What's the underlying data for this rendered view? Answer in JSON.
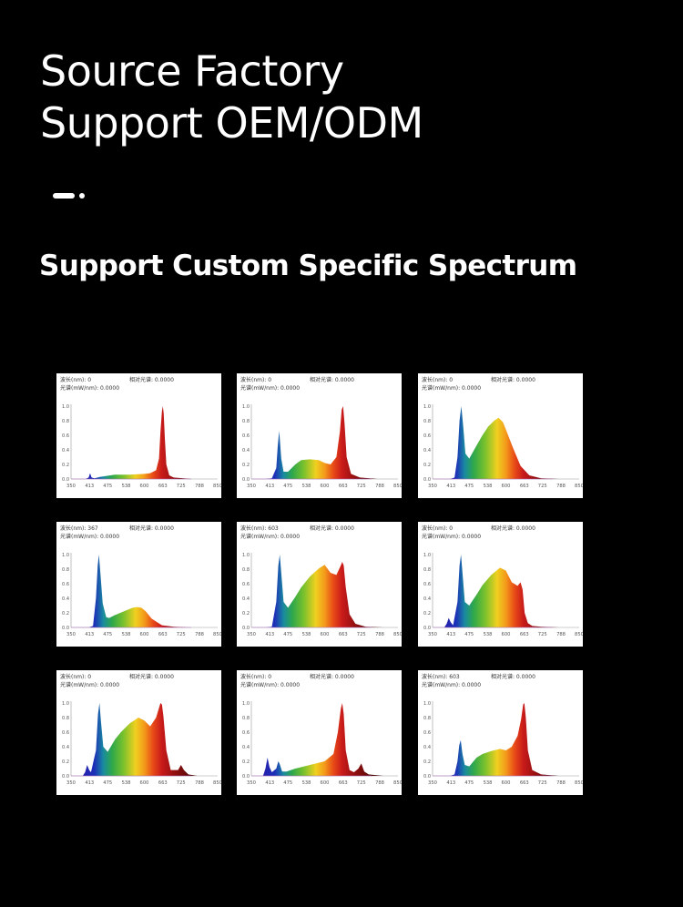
{
  "header": {
    "title_line1": "Source Factory",
    "title_line2": "Support OEM/ODM",
    "subtitle": "Support Custom Specific Spectrum"
  },
  "colors": {
    "background": "#000000",
    "text": "#ffffff",
    "card": "#ffffff"
  },
  "chart_common": {
    "x_ticks": [
      "350",
      "413",
      "475",
      "538",
      "600",
      "663",
      "725",
      "788",
      "850"
    ],
    "y_ticks": [
      "0.0",
      "0.2",
      "0.4",
      "0.6",
      "0.8",
      "1.0"
    ],
    "xlim": [
      350,
      850
    ],
    "ylim": [
      0,
      1.0
    ]
  },
  "chart_data": [
    {
      "type": "area",
      "info": {
        "wavelength": "波长(nm): 0",
        "relative": "相对光谱: 0.0000",
        "flux": "光谱(mW/nm): 0.0000"
      },
      "x": [
        350,
        400,
        410,
        415,
        420,
        430,
        450,
        500,
        550,
        600,
        620,
        640,
        650,
        655,
        660,
        663,
        666,
        670,
        675,
        685,
        700,
        760,
        850
      ],
      "y": [
        0,
        0,
        0.02,
        0.08,
        0.02,
        0.01,
        0.03,
        0.06,
        0.06,
        0.07,
        0.08,
        0.12,
        0.28,
        0.65,
        0.93,
        1.0,
        0.9,
        0.55,
        0.2,
        0.05,
        0.02,
        0,
        0
      ]
    },
    {
      "type": "area",
      "info": {
        "wavelength": "波长(nm): 0",
        "relative": "相对光谱: 0.0000",
        "flux": "光谱(mW/nm): 0.0000"
      },
      "x": [
        350,
        400,
        420,
        435,
        440,
        445,
        452,
        460,
        475,
        500,
        520,
        550,
        580,
        600,
        620,
        640,
        652,
        658,
        663,
        668,
        675,
        690,
        720,
        780,
        850
      ],
      "y": [
        0,
        0,
        0.01,
        0.15,
        0.45,
        0.66,
        0.28,
        0.1,
        0.1,
        0.2,
        0.26,
        0.27,
        0.26,
        0.22,
        0.2,
        0.3,
        0.65,
        0.95,
        1.0,
        0.75,
        0.3,
        0.07,
        0.02,
        0,
        0
      ]
    },
    {
      "type": "area",
      "info": {
        "wavelength": "波长(nm): 0",
        "relative": "相对光谱: 0.0000",
        "flux": "光谱(mW/nm): 0.0000"
      },
      "x": [
        350,
        410,
        425,
        435,
        442,
        448,
        455,
        462,
        475,
        500,
        520,
        540,
        560,
        575,
        590,
        600,
        625,
        650,
        680,
        720,
        780,
        850
      ],
      "y": [
        0,
        0,
        0.02,
        0.3,
        0.8,
        1.0,
        0.7,
        0.35,
        0.28,
        0.46,
        0.6,
        0.72,
        0.8,
        0.84,
        0.78,
        0.68,
        0.42,
        0.18,
        0.05,
        0.01,
        0,
        0
      ]
    },
    {
      "type": "area",
      "info": {
        "wavelength": "波长(nm): 367",
        "relative": "相对光谱: 0.0000",
        "flux": "光谱(mW/nm): 0.0000"
      },
      "x": [
        350,
        410,
        425,
        435,
        441,
        445,
        450,
        458,
        470,
        480,
        500,
        530,
        560,
        575,
        590,
        605,
        625,
        660,
        700,
        750,
        850
      ],
      "y": [
        0,
        0,
        0.02,
        0.4,
        0.85,
        1.0,
        0.75,
        0.33,
        0.14,
        0.13,
        0.17,
        0.22,
        0.27,
        0.28,
        0.27,
        0.22,
        0.12,
        0.03,
        0.01,
        0,
        0
      ]
    },
    {
      "type": "area",
      "info": {
        "wavelength": "波长(nm): 603",
        "relative": "相对光谱: 0.0000",
        "flux": "光谱(mW/nm): 0.0000"
      },
      "x": [
        350,
        400,
        420,
        435,
        442,
        447,
        453,
        460,
        475,
        500,
        520,
        550,
        580,
        600,
        620,
        640,
        655,
        660,
        665,
        672,
        685,
        705,
        740,
        800,
        850
      ],
      "y": [
        0,
        0,
        0.01,
        0.35,
        0.85,
        1.0,
        0.7,
        0.35,
        0.27,
        0.42,
        0.55,
        0.7,
        0.81,
        0.86,
        0.75,
        0.72,
        0.85,
        0.9,
        0.85,
        0.55,
        0.18,
        0.05,
        0.01,
        0,
        0
      ]
    },
    {
      "type": "area",
      "info": {
        "wavelength": "波长(nm): 0",
        "relative": "相对光谱: 0.0000",
        "flux": "光谱(mW/nm): 0.0000"
      },
      "x": [
        350,
        390,
        398,
        405,
        412,
        420,
        435,
        442,
        447,
        453,
        460,
        475,
        500,
        520,
        550,
        580,
        600,
        620,
        640,
        650,
        657,
        664,
        675,
        690,
        720,
        780,
        850
      ],
      "y": [
        0,
        0,
        0.05,
        0.13,
        0.07,
        0.03,
        0.35,
        0.85,
        1.0,
        0.7,
        0.35,
        0.3,
        0.45,
        0.58,
        0.72,
        0.82,
        0.78,
        0.62,
        0.57,
        0.62,
        0.52,
        0.2,
        0.06,
        0.02,
        0.01,
        0,
        0
      ]
    },
    {
      "type": "area",
      "info": {
        "wavelength": "波长(nm): 0",
        "relative": "相对光谱: 0.0000",
        "flux": "光谱(mW/nm): 0.0000"
      },
      "x": [
        350,
        390,
        398,
        405,
        412,
        418,
        435,
        442,
        447,
        452,
        460,
        475,
        500,
        520,
        550,
        580,
        600,
        620,
        640,
        655,
        660,
        665,
        675,
        690,
        715,
        725,
        735,
        750,
        780,
        850
      ],
      "y": [
        0,
        0,
        0.05,
        0.15,
        0.08,
        0.05,
        0.35,
        0.85,
        1.0,
        0.75,
        0.4,
        0.33,
        0.5,
        0.6,
        0.72,
        0.8,
        0.76,
        0.68,
        0.8,
        1.0,
        0.98,
        0.82,
        0.35,
        0.08,
        0.08,
        0.15,
        0.08,
        0.02,
        0,
        0
      ]
    },
    {
      "type": "area",
      "info": {
        "wavelength": "波长(nm): 0",
        "relative": "相对光谱: 0.0000",
        "flux": "光谱(mW/nm): 0.0000"
      },
      "x": [
        350,
        390,
        398,
        405,
        412,
        420,
        435,
        442,
        447,
        455,
        470,
        500,
        550,
        600,
        630,
        645,
        655,
        660,
        665,
        672,
        685,
        700,
        715,
        725,
        735,
        750,
        800,
        850
      ],
      "y": [
        0,
        0,
        0.1,
        0.25,
        0.12,
        0.05,
        0.1,
        0.2,
        0.16,
        0.06,
        0.06,
        0.1,
        0.15,
        0.2,
        0.3,
        0.6,
        0.92,
        1.0,
        0.85,
        0.35,
        0.08,
        0.05,
        0.1,
        0.17,
        0.06,
        0.02,
        0,
        0
      ]
    },
    {
      "type": "area",
      "info": {
        "wavelength": "波长(nm): 603",
        "relative": "相对光谱: 0.0000",
        "flux": "光谱(mW/nm): 0.0000"
      },
      "x": [
        350,
        410,
        425,
        435,
        441,
        446,
        452,
        460,
        475,
        500,
        520,
        550,
        580,
        600,
        620,
        640,
        652,
        659,
        663,
        668,
        675,
        690,
        720,
        780,
        850
      ],
      "y": [
        0,
        0,
        0.02,
        0.2,
        0.42,
        0.49,
        0.3,
        0.15,
        0.13,
        0.25,
        0.3,
        0.34,
        0.37,
        0.35,
        0.4,
        0.55,
        0.78,
        0.98,
        1.0,
        0.8,
        0.35,
        0.08,
        0.02,
        0,
        0
      ]
    }
  ]
}
